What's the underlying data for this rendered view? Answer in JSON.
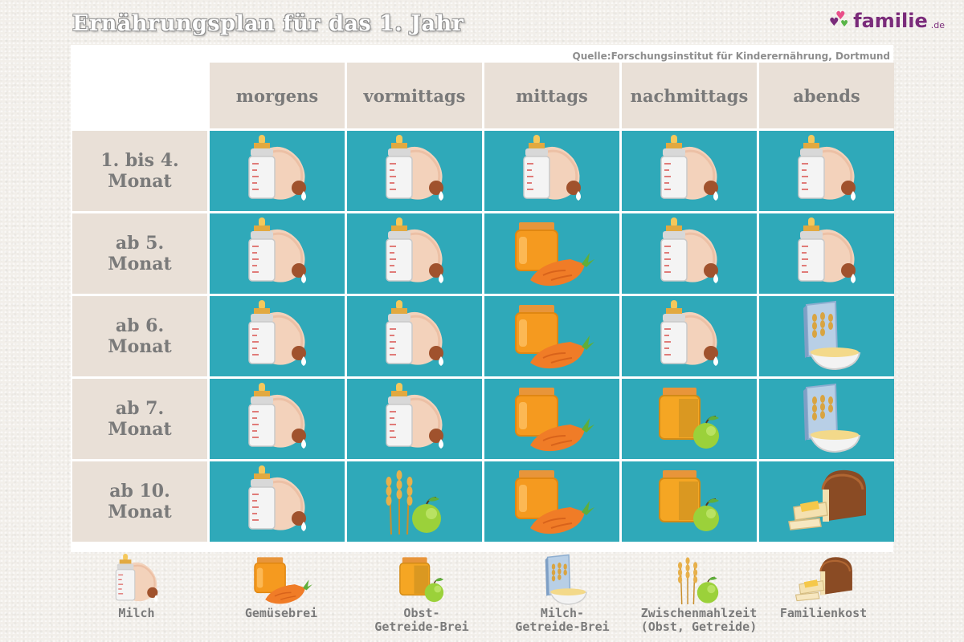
{
  "title": "Ernährungsplan für das 1. Jahr",
  "logo": {
    "text": "familie",
    "tld": ".de",
    "heart_colors": [
      "#7a2b7a",
      "#e94f8a",
      "#59b548"
    ]
  },
  "source": "Quelle:Forschungsinstitut für Kinderernährung, Dortmund",
  "colors": {
    "cell_teal": "#2fa9b9",
    "header_beige": "#e9e0d7",
    "text_gray": "#7a7a7a"
  },
  "columns": [
    "morgens",
    "vormittags",
    "mittags",
    "nachmittags",
    "abends"
  ],
  "rows": [
    {
      "label_line1": "1. bis 4.",
      "label_line2": "Monat",
      "cells": [
        "milk",
        "milk",
        "milk",
        "milk",
        "milk"
      ]
    },
    {
      "label_line1": "ab 5.",
      "label_line2": "Monat",
      "cells": [
        "milk",
        "milk",
        "veg",
        "milk",
        "milk"
      ]
    },
    {
      "label_line1": "ab 6.",
      "label_line2": "Monat",
      "cells": [
        "milk",
        "milk",
        "veg",
        "milk",
        "cereal"
      ]
    },
    {
      "label_line1": "ab 7.",
      "label_line2": "Monat",
      "cells": [
        "milk",
        "milk",
        "veg",
        "fruit",
        "cereal"
      ]
    },
    {
      "label_line1": "ab 10.",
      "label_line2": "Monat",
      "cells": [
        "milk",
        "snack",
        "veg",
        "fruit",
        "family"
      ]
    }
  ],
  "legend": [
    {
      "icon": "milk",
      "line1": "Milch",
      "line2": ""
    },
    {
      "icon": "veg",
      "line1": "Gemüsebrei",
      "line2": ""
    },
    {
      "icon": "fruit",
      "line1": "Obst-",
      "line2": "Getreide-Brei"
    },
    {
      "icon": "cereal",
      "line1": "Milch-",
      "line2": "Getreide-Brei"
    },
    {
      "icon": "snack",
      "line1": "Zwischenmahlzeit",
      "line2": "(Obst, Getreide)"
    },
    {
      "icon": "family",
      "line1": "Familienkost",
      "line2": ""
    }
  ]
}
